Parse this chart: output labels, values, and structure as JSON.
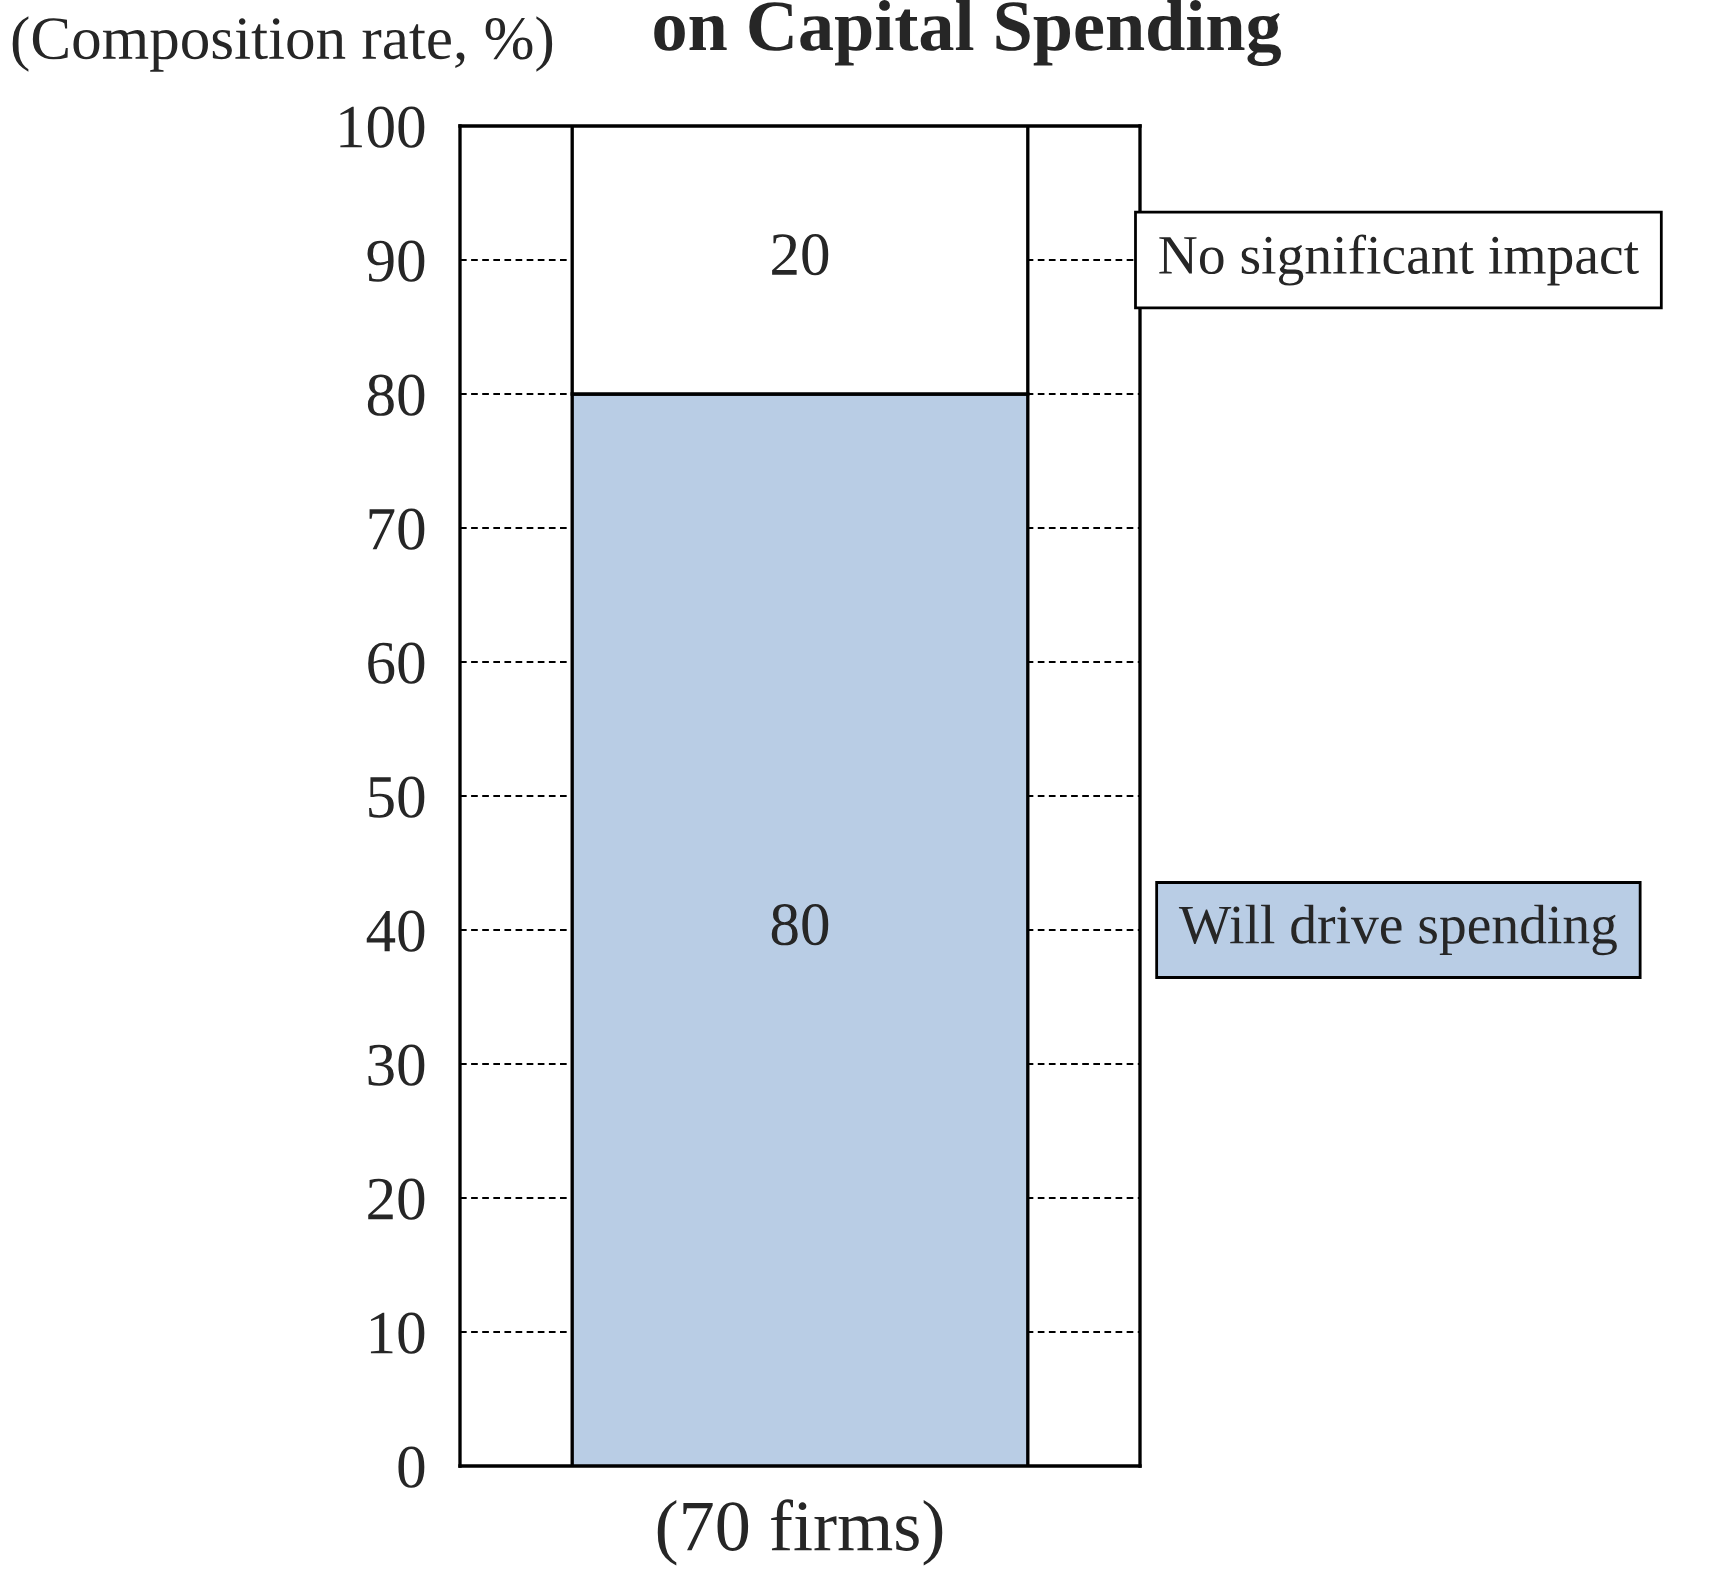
{
  "chart_data": {
    "type": "bar",
    "title": "on Capital Spending",
    "ylabel": "(Composition rate, %)",
    "categories": [
      "(70 firms)"
    ],
    "stacked": true,
    "series": [
      {
        "name": "Will drive spending",
        "color": "#b9cde5",
        "values": [
          80
        ]
      },
      {
        "name": "No significant impact",
        "color": "#ffffff",
        "values": [
          20
        ]
      }
    ],
    "ylim": [
      0,
      100
    ],
    "yticks": [
      0,
      10,
      20,
      30,
      40,
      50,
      60,
      70,
      80,
      90,
      100
    ],
    "grid": "y",
    "data_labels": true,
    "legend": "right"
  }
}
